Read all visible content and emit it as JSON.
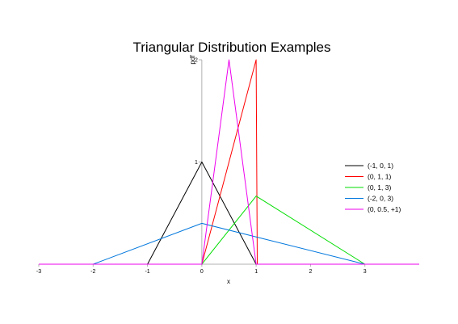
{
  "chart_data": {
    "type": "line",
    "title": "Triangular Distribution Examples",
    "xlabel": "x",
    "ylabel": "pdf",
    "xlim": [
      -3,
      4
    ],
    "ylim": [
      0,
      2
    ],
    "x_ticks": [
      -3,
      -2,
      -1,
      0,
      1,
      2,
      3
    ],
    "y_ticks": [
      1,
      2
    ],
    "grid": false,
    "legend": "right",
    "series": [
      {
        "name": "(-1, 0, 1)",
        "color": "#000000",
        "points": [
          [
            -3,
            0
          ],
          [
            -1,
            0
          ],
          [
            0,
            1
          ],
          [
            1,
            0
          ],
          [
            4,
            0
          ]
        ]
      },
      {
        "name": "(0, 1, 1)",
        "color": "#ff0000",
        "points": [
          [
            -3,
            0
          ],
          [
            0,
            0
          ],
          [
            1,
            2
          ],
          [
            1.02,
            0
          ],
          [
            4,
            0
          ]
        ]
      },
      {
        "name": "(0, 1, 3)",
        "color": "#00dd00",
        "points": [
          [
            -3,
            0
          ],
          [
            0,
            0
          ],
          [
            1,
            0.6667
          ],
          [
            3,
            0
          ],
          [
            4,
            0
          ]
        ]
      },
      {
        "name": "(-2, 0, 3)",
        "color": "#0077dd",
        "points": [
          [
            -3,
            0
          ],
          [
            -2,
            0
          ],
          [
            0,
            0.4
          ],
          [
            3,
            0
          ],
          [
            4,
            0
          ]
        ]
      },
      {
        "name": "(0, 0.5, +1)",
        "color": "#ee00ee",
        "points": [
          [
            -3,
            0
          ],
          [
            0,
            0
          ],
          [
            0.5,
            2
          ],
          [
            1,
            0
          ],
          [
            4,
            0
          ]
        ]
      }
    ]
  }
}
